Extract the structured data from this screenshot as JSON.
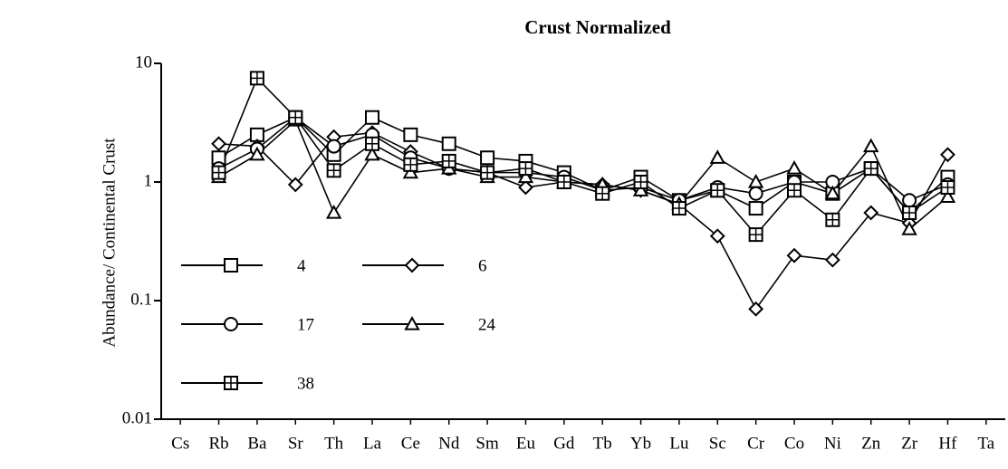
{
  "chart_data": {
    "type": "line",
    "title": "Crust  Normalized",
    "ylabel": "Abundance/ Continental Crust",
    "log_scale": true,
    "ylim": [
      0.01,
      10
    ],
    "yticks": [
      10,
      1,
      0.1,
      0.01
    ],
    "legend": "lower left",
    "categories": [
      "Cs",
      "Rb",
      "Ba",
      "Sr",
      "Th",
      "La",
      "Ce",
      "Nd",
      "Sm",
      "Eu",
      "Gd",
      "Tb",
      "Yb",
      "Lu",
      "Sc",
      "Cr",
      "Co",
      "Ni",
      "Zn",
      "Zr",
      "Hf",
      "Ta"
    ],
    "series": [
      {
        "name": "4",
        "color": "#000000",
        "marker": "square",
        "values": [
          null,
          1.6,
          2.5,
          3.5,
          1.7,
          3.5,
          2.5,
          2.1,
          1.6,
          1.5,
          1.2,
          0.85,
          1.1,
          0.7,
          0.85,
          0.6,
          1.0,
          0.8,
          1.3,
          0.55,
          1.1,
          null
        ]
      },
      {
        "name": "6",
        "color": "#000000",
        "marker": "diamond",
        "values": [
          null,
          2.1,
          2.0,
          0.95,
          2.4,
          2.6,
          1.8,
          1.3,
          1.2,
          0.9,
          1.0,
          0.95,
          0.85,
          0.65,
          0.35,
          0.085,
          0.24,
          0.22,
          0.55,
          0.45,
          1.7,
          null
        ]
      },
      {
        "name": "17",
        "color": "#000000",
        "marker": "circle",
        "values": [
          null,
          1.3,
          1.9,
          3.5,
          2.0,
          2.5,
          1.6,
          1.3,
          1.2,
          1.2,
          1.1,
          0.85,
          0.9,
          0.7,
          0.9,
          0.8,
          1.0,
          1.0,
          1.3,
          0.7,
          0.95,
          null
        ]
      },
      {
        "name": "24",
        "color": "#000000",
        "marker": "triangle",
        "values": [
          null,
          1.1,
          1.7,
          3.3,
          0.55,
          1.7,
          1.2,
          1.3,
          1.1,
          1.1,
          1.0,
          0.95,
          0.85,
          0.65,
          1.6,
          1.0,
          1.3,
          0.8,
          2.0,
          0.4,
          0.75,
          null
        ]
      },
      {
        "name": "38",
        "color": "#000000",
        "marker": "square-plus",
        "values": [
          null,
          1.2,
          7.5,
          3.5,
          1.25,
          2.1,
          1.4,
          1.5,
          1.2,
          1.3,
          1.0,
          0.8,
          1.0,
          0.6,
          0.85,
          0.36,
          0.85,
          0.48,
          1.3,
          0.55,
          0.9,
          null
        ]
      }
    ]
  }
}
